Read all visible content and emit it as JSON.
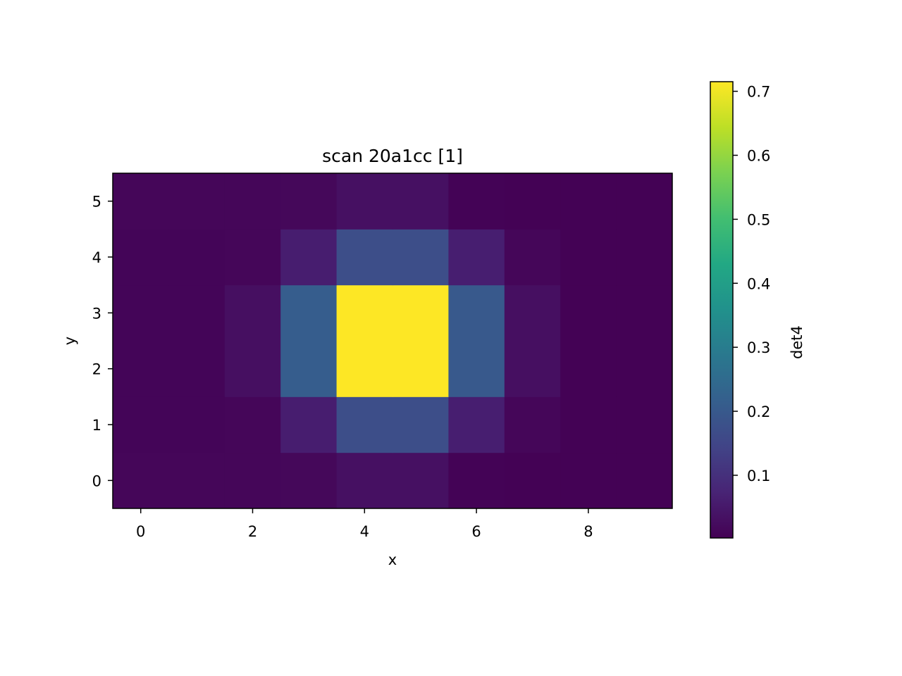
{
  "chart_data": {
    "type": "heatmap",
    "title": "scan 20a1cc [1]",
    "xlabel": "x",
    "ylabel": "y",
    "colorbar_label": "det4",
    "colormap": "viridis",
    "x": [
      0,
      1,
      2,
      3,
      4,
      5,
      6,
      7,
      8,
      9
    ],
    "y": [
      0,
      1,
      2,
      3,
      4,
      5
    ],
    "xlim": [
      -0.5,
      9.5
    ],
    "ylim": [
      -0.5,
      5.5
    ],
    "x_ticks": [
      0,
      2,
      4,
      6,
      8
    ],
    "y_ticks": [
      0,
      1,
      2,
      3,
      4,
      5
    ],
    "z_range": [
      0.002,
      0.715
    ],
    "colorbar_ticks": [
      0.1,
      0.2,
      0.3,
      0.4,
      0.5,
      0.6,
      0.7
    ],
    "grid": false,
    "z": [
      [
        0.012,
        0.012,
        0.012,
        0.016,
        0.032,
        0.032,
        0.006,
        0.004,
        0.004,
        0.004
      ],
      [
        0.01,
        0.01,
        0.012,
        0.06,
        0.17,
        0.17,
        0.062,
        0.012,
        0.004,
        0.004
      ],
      [
        0.01,
        0.01,
        0.03,
        0.21,
        0.715,
        0.715,
        0.2,
        0.03,
        0.004,
        0.004
      ],
      [
        0.01,
        0.01,
        0.03,
        0.21,
        0.715,
        0.715,
        0.2,
        0.03,
        0.004,
        0.004
      ],
      [
        0.01,
        0.01,
        0.012,
        0.06,
        0.17,
        0.17,
        0.062,
        0.012,
        0.004,
        0.004
      ],
      [
        0.012,
        0.012,
        0.012,
        0.016,
        0.032,
        0.032,
        0.006,
        0.004,
        0.004,
        0.004
      ]
    ]
  }
}
